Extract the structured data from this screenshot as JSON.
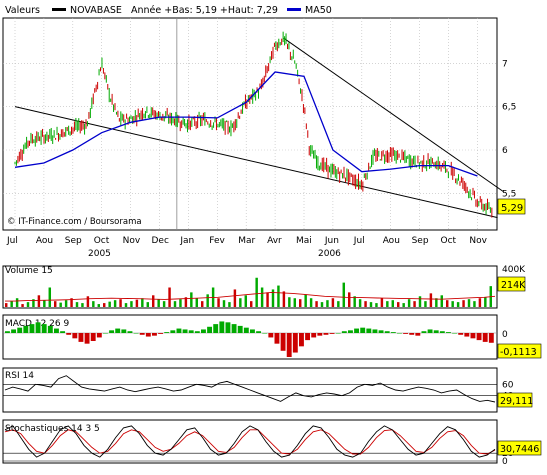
{
  "legend": {
    "series_label": "Valeurs",
    "ticker": "NOVABASE",
    "stats": "Année +Bas: 5,19 +Haut: 7,29",
    "ma_label": "MA50"
  },
  "watermark": "© IT-Finance.com / Boursorama",
  "colors": {
    "up": "#00aa00",
    "down": "#cc0000",
    "ma": "#0000cc",
    "grid": "#bbbbbb",
    "value_box": "#ffff00",
    "black": "#000000"
  },
  "chart_data": [
    {
      "type": "candlestick",
      "name": "price",
      "months": [
        "Jul",
        "Aou",
        "Sep",
        "Oct",
        "Nov",
        "Dec",
        "Jan",
        "Fev",
        "Mar",
        "Avr",
        "Mai",
        "Jun",
        "Jul",
        "Aou",
        "Sep",
        "Oct",
        "Nov"
      ],
      "years": [
        "2005",
        "2006"
      ],
      "y_ticks": [
        "7",
        "6,5",
        "6",
        "5,5"
      ],
      "y_tick_values": [
        7,
        6.5,
        6,
        5.5
      ],
      "ylim": [
        5.1,
        7.5
      ],
      "last_value": "5,29",
      "trendlines": [
        {
          "from": {
            "month": 0,
            "value": 6.5
          },
          "to": {
            "month": 16.7,
            "value": 5.22
          }
        },
        {
          "from": {
            "month": 9.3,
            "value": 7.29
          },
          "to": {
            "month": 16.9,
            "value": 5.52
          }
        }
      ],
      "ma_points": [
        [
          0,
          5.8
        ],
        [
          1,
          5.85
        ],
        [
          2,
          6.0
        ],
        [
          3,
          6.2
        ],
        [
          4,
          6.32
        ],
        [
          5,
          6.38
        ],
        [
          6,
          6.38
        ],
        [
          7,
          6.37
        ],
        [
          8,
          6.55
        ],
        [
          9,
          6.9
        ],
        [
          10,
          6.85
        ],
        [
          11,
          6.0
        ],
        [
          12,
          5.75
        ],
        [
          13,
          5.78
        ],
        [
          14,
          5.82
        ],
        [
          15,
          5.82
        ],
        [
          16,
          5.7
        ]
      ],
      "price_points": [
        [
          0,
          5.85
        ],
        [
          0.5,
          6.12
        ],
        [
          1,
          6.15
        ],
        [
          1.5,
          6.18
        ],
        [
          2,
          6.25
        ],
        [
          2.5,
          6.3
        ],
        [
          3,
          7.0
        ],
        [
          3.3,
          6.6
        ],
        [
          3.6,
          6.35
        ],
        [
          4,
          6.35
        ],
        [
          4.5,
          6.45
        ],
        [
          5,
          6.4
        ],
        [
          5.5,
          6.35
        ],
        [
          6,
          6.3
        ],
        [
          6.5,
          6.35
        ],
        [
          7,
          6.3
        ],
        [
          7.5,
          6.25
        ],
        [
          8,
          6.55
        ],
        [
          8.5,
          6.7
        ],
        [
          9,
          7.2
        ],
        [
          9.3,
          7.29
        ],
        [
          9.7,
          7.0
        ],
        [
          10,
          6.5
        ],
        [
          10.2,
          6.0
        ],
        [
          10.5,
          5.85
        ],
        [
          11,
          5.75
        ],
        [
          11.5,
          5.7
        ],
        [
          12,
          5.6
        ],
        [
          12.4,
          5.92
        ],
        [
          13,
          5.95
        ],
        [
          13.5,
          5.9
        ],
        [
          14,
          5.85
        ],
        [
          14.5,
          5.85
        ],
        [
          15,
          5.78
        ],
        [
          15.5,
          5.62
        ],
        [
          16,
          5.4
        ],
        [
          16.5,
          5.29
        ]
      ]
    },
    {
      "type": "bar",
      "name": "Volume 15",
      "label": "Volume 15",
      "y_ticks": [
        "400K"
      ],
      "ylim": [
        0,
        400
      ],
      "last_value": "214K",
      "values": [
        40,
        60,
        90,
        30,
        50,
        80,
        120,
        70,
        200,
        60,
        45,
        70,
        90,
        50,
        40,
        110,
        60,
        30,
        40,
        55,
        70,
        80,
        40,
        60,
        75,
        90,
        50,
        120,
        80,
        60,
        200,
        60,
        80,
        100,
        150,
        90,
        60,
        130,
        200,
        90,
        70,
        50,
        180,
        90,
        120,
        60,
        300,
        200,
        150,
        180,
        220,
        160,
        100,
        90,
        80,
        130,
        90,
        60,
        50,
        70,
        90,
        60,
        250,
        150,
        110,
        80,
        60,
        50,
        40,
        90,
        60,
        70,
        50,
        40,
        80,
        60,
        110,
        60,
        140,
        90,
        120,
        70,
        60,
        50,
        70,
        80,
        60,
        90,
        100,
        214
      ],
      "ma_line": [
        60,
        62,
        66,
        68,
        70,
        72,
        75,
        80,
        85,
        88,
        90,
        88,
        86,
        84,
        80,
        78,
        82,
        86,
        90,
        95,
        100,
        110,
        120,
        130,
        140,
        150,
        145,
        140,
        130,
        120,
        110,
        105,
        100,
        98,
        95,
        92,
        90,
        88,
        86,
        84,
        82,
        80,
        85,
        90,
        95,
        100,
        110
      ]
    },
    {
      "type": "bar",
      "name": "MACD 12 26 9",
      "label": "MACD  12 26 9",
      "y_ticks": [
        "0"
      ],
      "ylim": [
        -0.3,
        0.15
      ],
      "last_value": "-0,1113",
      "values": [
        0.02,
        0.04,
        0.06,
        0.08,
        0.1,
        0.12,
        0.1,
        0.08,
        0.05,
        0.02,
        -0.02,
        -0.06,
        -0.1,
        -0.12,
        -0.09,
        -0.05,
        0.0,
        0.03,
        0.05,
        0.04,
        0.02,
        0.0,
        -0.02,
        -0.04,
        -0.03,
        -0.01,
        0.01,
        0.03,
        0.05,
        0.04,
        0.03,
        0.02,
        0.04,
        0.07,
        0.1,
        0.13,
        0.12,
        0.1,
        0.08,
        0.06,
        0.04,
        0.02,
        0.0,
        -0.05,
        -0.12,
        -0.2,
        -0.27,
        -0.22,
        -0.15,
        -0.08,
        -0.05,
        -0.03,
        -0.02,
        -0.01,
        0.0,
        0.02,
        0.03,
        0.05,
        0.06,
        0.05,
        0.04,
        0.03,
        0.02,
        0.01,
        0.0,
        -0.01,
        -0.02,
        -0.03,
        0.02,
        0.04,
        0.03,
        0.02,
        0.01,
        0.0,
        -0.02,
        -0.04,
        -0.06,
        -0.08,
        -0.1,
        -0.11
      ]
    },
    {
      "type": "line",
      "name": "RSI 14",
      "label": "RSI 14",
      "y_ticks": [
        "60",
        "40"
      ],
      "y_tick_values": [
        60,
        40
      ],
      "ylim": [
        15,
        85
      ],
      "last_value": "29,111",
      "values": [
        50,
        55,
        52,
        48,
        60,
        58,
        55,
        70,
        75,
        65,
        55,
        52,
        50,
        48,
        52,
        55,
        50,
        47,
        50,
        53,
        55,
        52,
        48,
        50,
        55,
        60,
        58,
        55,
        62,
        65,
        60,
        55,
        50,
        45,
        40,
        35,
        30,
        38,
        45,
        40,
        38,
        42,
        45,
        43,
        40,
        45,
        55,
        60,
        58,
        62,
        55,
        50,
        48,
        52,
        55,
        53,
        50,
        45,
        48,
        50,
        42,
        35,
        30,
        32,
        29
      ]
    },
    {
      "type": "line",
      "name": "Stochastics 14 3 5",
      "label": "Stochastiques 14 3 5",
      "y_ticks": [
        "20",
        "0"
      ],
      "y_tick_values": [
        20,
        0
      ],
      "ylim": [
        0,
        100
      ],
      "last_value": "30,7446",
      "k_values": [
        80,
        90,
        60,
        30,
        10,
        20,
        50,
        80,
        90,
        70,
        40,
        20,
        10,
        30,
        60,
        85,
        90,
        70,
        40,
        20,
        15,
        30,
        55,
        80,
        85,
        60,
        30,
        15,
        20,
        45,
        75,
        90,
        80,
        50,
        25,
        10,
        15,
        40,
        70,
        90,
        85,
        60,
        30,
        15,
        10,
        20,
        50,
        75,
        90,
        80,
        55,
        30,
        15,
        20,
        45,
        70,
        88,
        80,
        55,
        25,
        10,
        15,
        30
      ],
      "d_values": [
        75,
        80,
        70,
        45,
        25,
        20,
        40,
        65,
        80,
        75,
        55,
        35,
        20,
        25,
        45,
        70,
        80,
        75,
        55,
        35,
        25,
        30,
        45,
        65,
        75,
        65,
        45,
        25,
        22,
        35,
        60,
        80,
        80,
        60,
        40,
        20,
        18,
        30,
        55,
        75,
        80,
        70,
        50,
        30,
        18,
        18,
        35,
        60,
        78,
        80,
        65,
        45,
        25,
        22,
        35,
        58,
        75,
        78,
        65,
        40,
        20,
        18,
        28
      ]
    }
  ]
}
